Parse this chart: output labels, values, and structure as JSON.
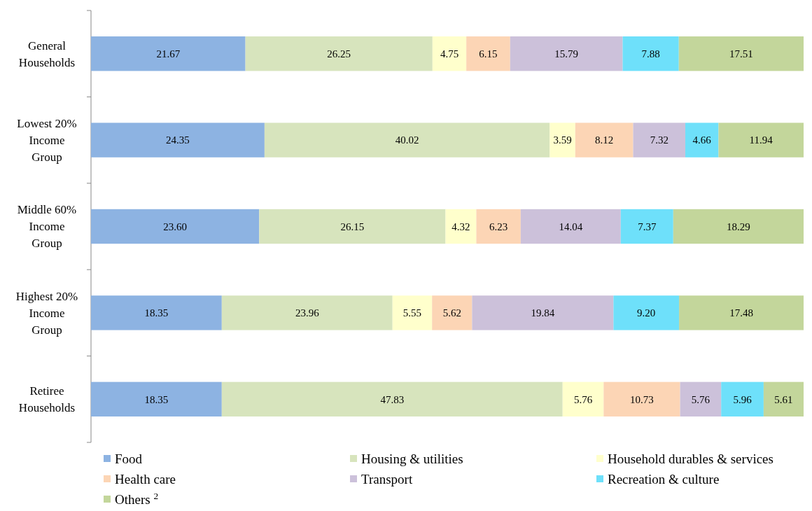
{
  "chart_data": {
    "type": "bar",
    "orientation": "horizontal",
    "stacked": true,
    "xlim": [
      0,
      100
    ],
    "tick_labels": "y",
    "legend": "bottom",
    "categories": [
      "General Households",
      "Lowest 20% Income Group",
      "Middle 60% Income Group",
      "Highest 20% Income Group",
      "Retiree Households"
    ],
    "series": [
      {
        "name": "Food",
        "color": "#8db3e2",
        "values": [
          21.67,
          24.35,
          23.6,
          18.35,
          18.35
        ],
        "value_labels": [
          "21.67",
          "24.35",
          "23.60",
          "18.35",
          "18.35"
        ]
      },
      {
        "name": "Housing & utilities",
        "color": "#d7e4bd",
        "values": [
          26.25,
          40.02,
          26.15,
          23.96,
          47.83
        ],
        "value_labels": [
          "26.25",
          "40.02",
          "26.15",
          "23.96",
          "47.83"
        ]
      },
      {
        "name": "Household durables & services",
        "color": "#ffffcc",
        "values": [
          4.75,
          3.59,
          4.32,
          5.55,
          5.76
        ],
        "value_labels": [
          "4.75",
          "3.59",
          "4.32",
          "5.55",
          "5.76"
        ]
      },
      {
        "name": "Health care",
        "color": "#fcd5b5",
        "values": [
          6.15,
          8.12,
          6.23,
          5.62,
          10.73
        ],
        "value_labels": [
          "6.15",
          "8.12",
          "6.23",
          "5.62",
          "10.73"
        ]
      },
      {
        "name": "Transport",
        "color": "#ccc1da",
        "values": [
          15.79,
          7.32,
          14.04,
          19.84,
          5.76
        ],
        "value_labels": [
          "15.79",
          "7.32",
          "14.04",
          "19.84",
          "5.76"
        ]
      },
      {
        "name": "Recreation & culture",
        "color": "#6ee0fa",
        "values": [
          7.88,
          4.66,
          7.37,
          9.2,
          5.96
        ],
        "value_labels": [
          "7.88",
          "4.66",
          "7.37",
          "9.20",
          "5.96"
        ]
      },
      {
        "name": "Others $^{2}$",
        "color": "#c3d69b",
        "values": [
          17.51,
          11.94,
          18.29,
          17.48,
          5.61
        ],
        "value_labels": [
          "17.51",
          "11.94",
          "18.29",
          "17.48",
          "5.61"
        ]
      }
    ]
  }
}
